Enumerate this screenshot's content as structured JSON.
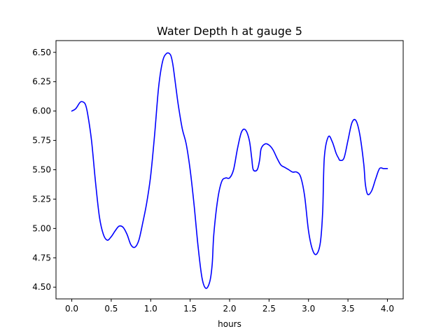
{
  "chart_data": {
    "type": "line",
    "title": "Water Depth h at gauge 5",
    "xlabel": "hours",
    "ylabel": "",
    "xlim": [
      -0.2,
      4.2
    ],
    "ylim": [
      4.4,
      6.6
    ],
    "xticks": [
      0.0,
      0.5,
      1.0,
      1.5,
      2.0,
      2.5,
      3.0,
      3.5,
      4.0
    ],
    "xtick_labels": [
      "0.0",
      "0.5",
      "1.0",
      "1.5",
      "2.0",
      "2.5",
      "3.0",
      "3.5",
      "4.0"
    ],
    "yticks": [
      4.5,
      4.75,
      5.0,
      5.25,
      5.5,
      5.75,
      6.0,
      6.25,
      6.5
    ],
    "ytick_labels": [
      "4.50",
      "4.75",
      "5.00",
      "5.25",
      "5.50",
      "5.75",
      "6.00",
      "6.25",
      "6.50"
    ],
    "grid": false,
    "legend": false,
    "series": [
      {
        "color": "#0000ff",
        "x": [
          0.0,
          0.05,
          0.1,
          0.13,
          0.17,
          0.2,
          0.25,
          0.3,
          0.35,
          0.4,
          0.45,
          0.5,
          0.55,
          0.6,
          0.65,
          0.7,
          0.75,
          0.8,
          0.85,
          0.9,
          0.95,
          1.0,
          1.05,
          1.1,
          1.15,
          1.2,
          1.25,
          1.28,
          1.32,
          1.35,
          1.4,
          1.45,
          1.5,
          1.55,
          1.6,
          1.65,
          1.7,
          1.75,
          1.78,
          1.8,
          1.85,
          1.9,
          1.95,
          2.0,
          2.05,
          2.1,
          2.15,
          2.2,
          2.25,
          2.28,
          2.3,
          2.35,
          2.38,
          2.4,
          2.45,
          2.5,
          2.55,
          2.6,
          2.65,
          2.7,
          2.75,
          2.8,
          2.85,
          2.9,
          2.95,
          3.0,
          3.05,
          3.1,
          3.15,
          3.18,
          3.2,
          3.25,
          3.3,
          3.35,
          3.38,
          3.4,
          3.45,
          3.5,
          3.55,
          3.6,
          3.65,
          3.7,
          3.72,
          3.75,
          3.8,
          3.85,
          3.9,
          3.95,
          4.0
        ],
        "y": [
          6.0,
          6.02,
          6.07,
          6.08,
          6.06,
          5.98,
          5.75,
          5.4,
          5.1,
          4.95,
          4.9,
          4.93,
          4.98,
          5.02,
          5.01,
          4.95,
          4.86,
          4.84,
          4.9,
          5.05,
          5.22,
          5.45,
          5.8,
          6.2,
          6.42,
          6.49,
          6.48,
          6.4,
          6.2,
          6.05,
          5.85,
          5.72,
          5.5,
          5.2,
          4.85,
          4.58,
          4.49,
          4.55,
          4.7,
          4.95,
          5.25,
          5.4,
          5.43,
          5.43,
          5.5,
          5.68,
          5.82,
          5.84,
          5.75,
          5.6,
          5.5,
          5.5,
          5.58,
          5.68,
          5.72,
          5.71,
          5.67,
          5.6,
          5.54,
          5.52,
          5.5,
          5.48,
          5.48,
          5.44,
          5.28,
          4.98,
          4.82,
          4.78,
          4.88,
          5.15,
          5.6,
          5.78,
          5.74,
          5.64,
          5.6,
          5.58,
          5.6,
          5.75,
          5.9,
          5.92,
          5.8,
          5.55,
          5.38,
          5.29,
          5.32,
          5.42,
          5.51,
          5.51,
          5.51
        ]
      }
    ]
  }
}
